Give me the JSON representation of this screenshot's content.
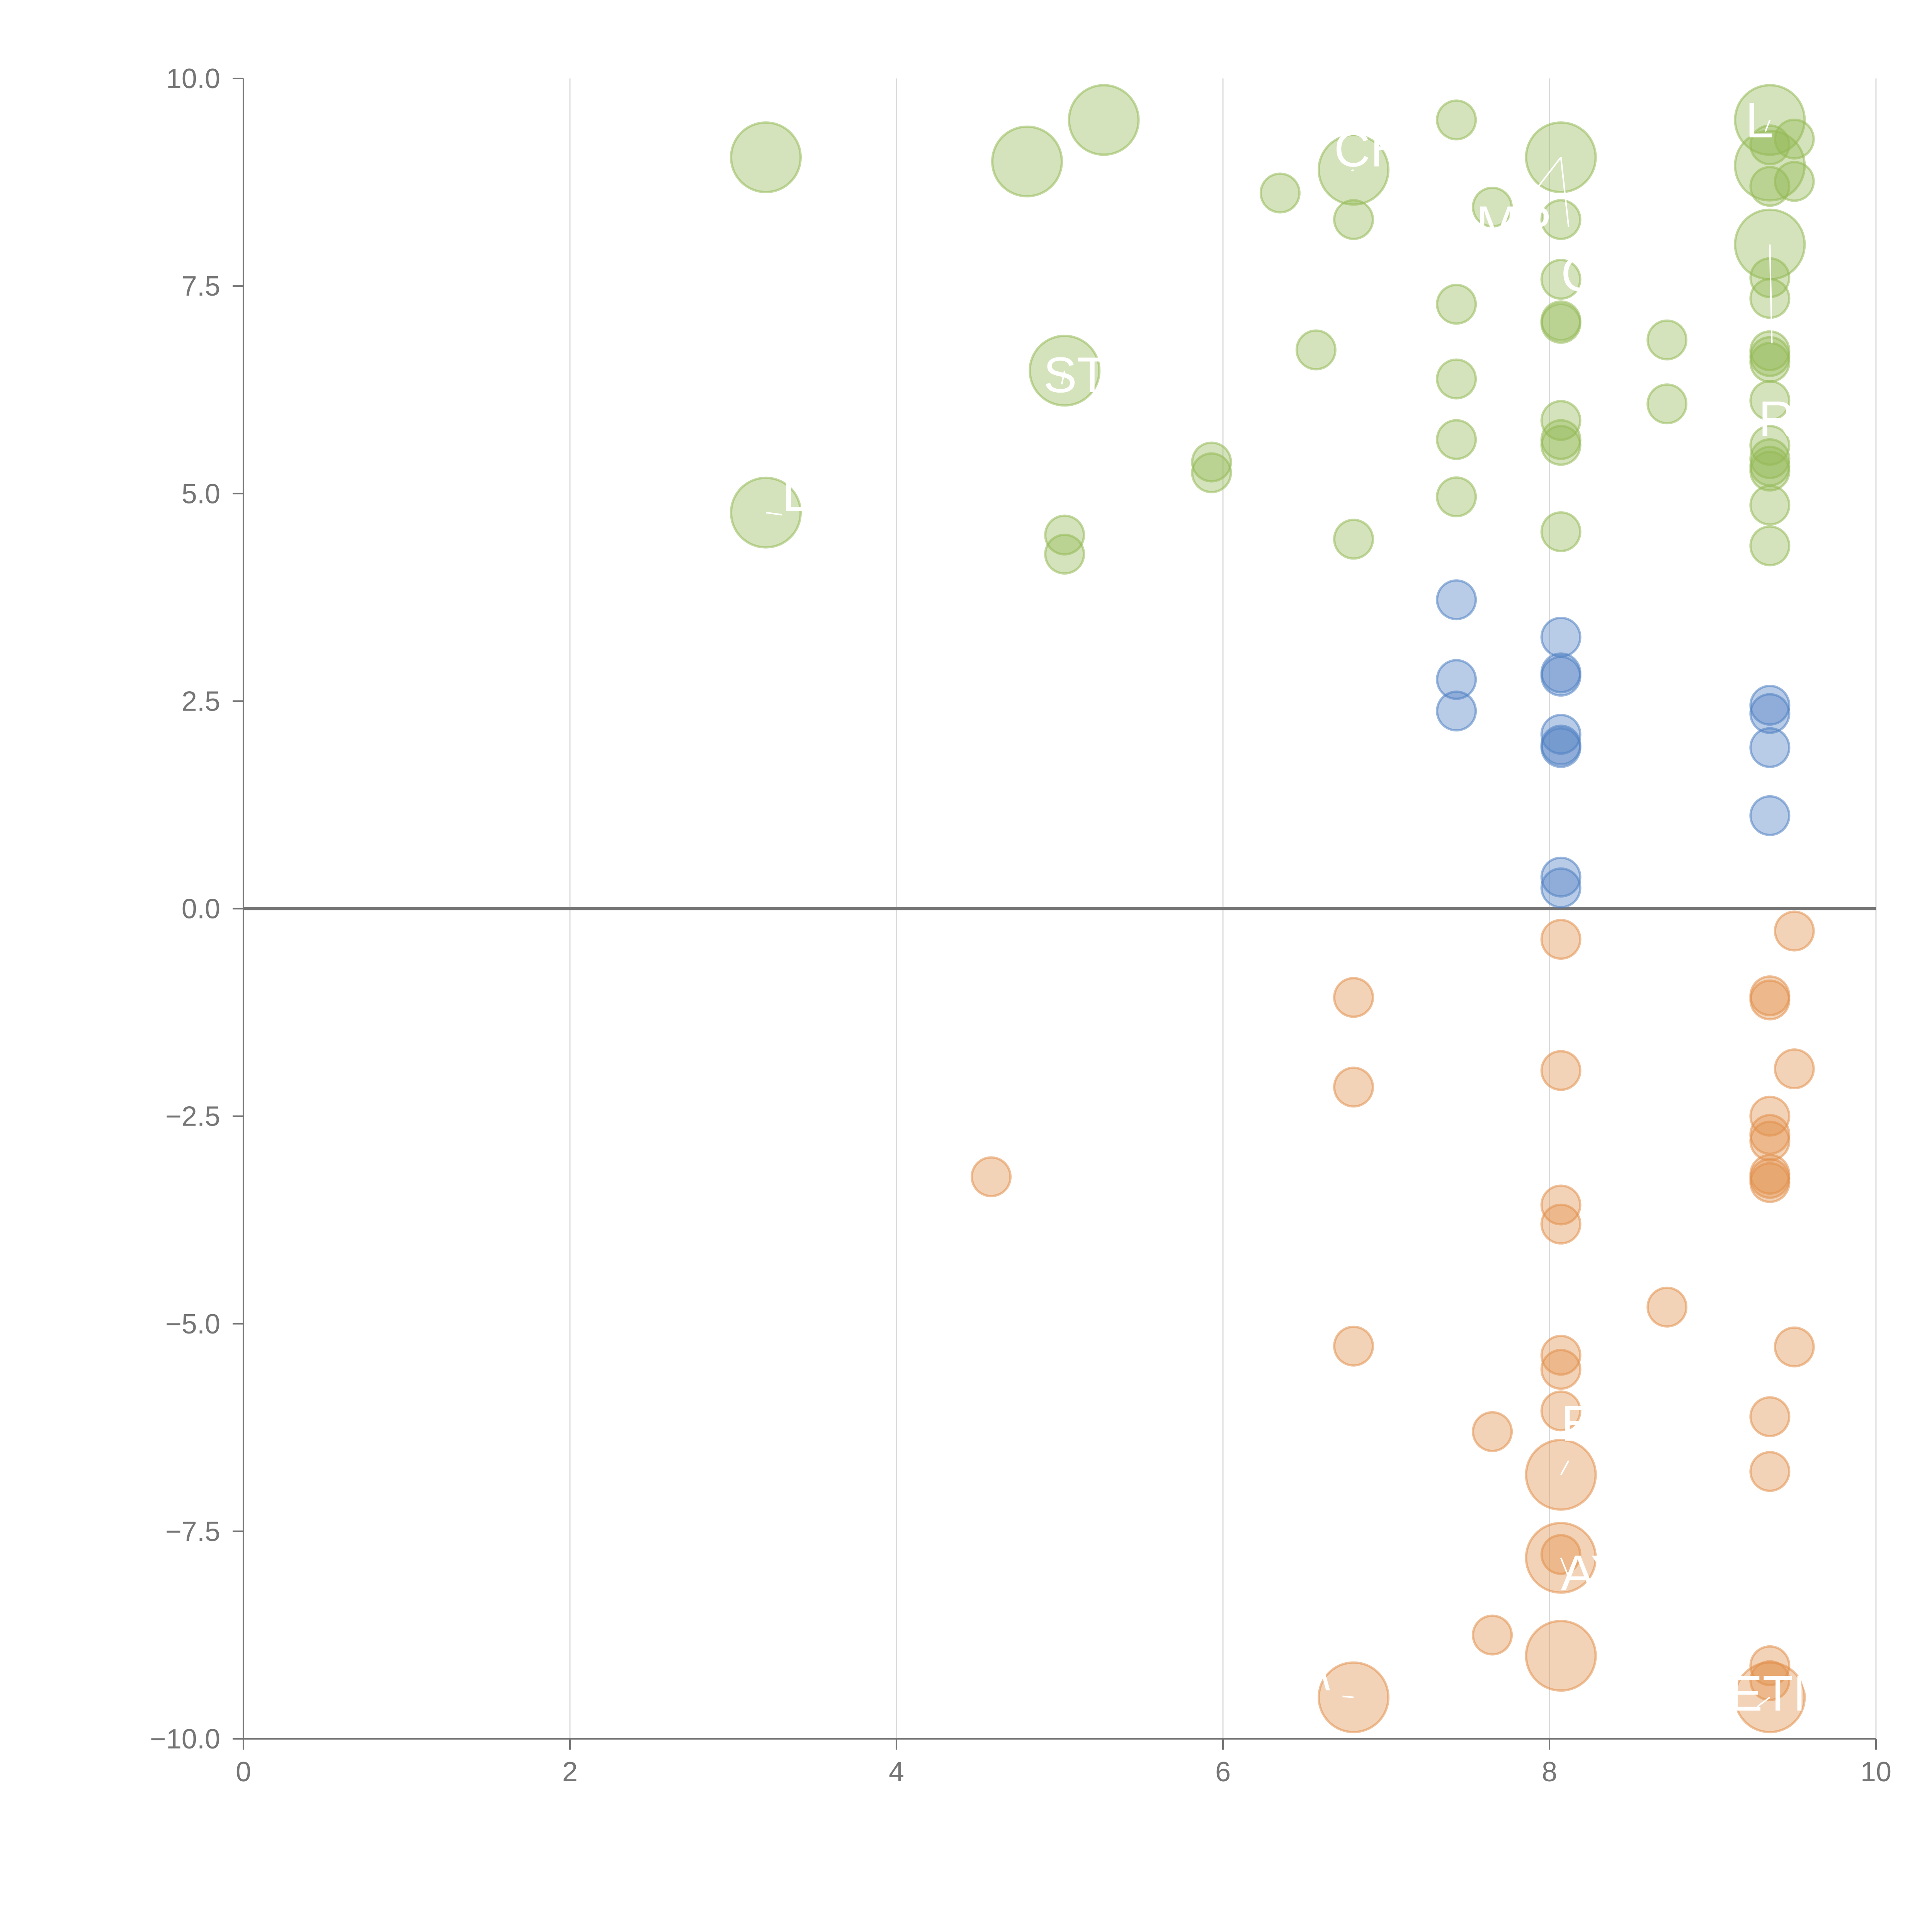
{
  "chart_data": {
    "type": "scatter",
    "title": "",
    "xlabel": "",
    "ylabel": "",
    "xlim": [
      0,
      10
    ],
    "ylim": [
      -10,
      10
    ],
    "xticks": [
      "0",
      "2",
      "4",
      "6",
      "8",
      "10"
    ],
    "yticks": [
      "10.0",
      "7.5",
      "5.0",
      "2.5",
      "0.0",
      "−2.5",
      "−5.0",
      "−7.5",
      "−10.0"
    ],
    "xtick_values": [
      0,
      2,
      4,
      6,
      8,
      10
    ],
    "ytick_values": [
      10,
      7.5,
      5,
      2.5,
      0,
      -2.5,
      -5,
      -7.5,
      -10
    ],
    "vertical_grid": true,
    "zero_line": true,
    "colors": {
      "positive_high": "#93b956",
      "positive_low": "#4f7fc2",
      "negative": "#e2904c",
      "axis": "#757575",
      "grid": "#d9d9d9",
      "label": "#ffffff"
    },
    "series": [
      {
        "name": "large-positive",
        "color": "#93b956",
        "points": [
          {
            "x": 3.2,
            "y": 9.05,
            "size": "large"
          },
          {
            "x": 4.8,
            "y": 9.0,
            "size": "large"
          },
          {
            "x": 5.27,
            "y": 9.5,
            "size": "large"
          },
          {
            "x": 6.8,
            "y": 8.9,
            "size": "large"
          },
          {
            "x": 8.07,
            "y": 9.05,
            "size": "large"
          },
          {
            "x": 9.35,
            "y": 9.5,
            "size": "large"
          },
          {
            "x": 9.35,
            "y": 8.95,
            "size": "large"
          },
          {
            "x": 9.35,
            "y": 8.0,
            "size": "large"
          },
          {
            "x": 5.03,
            "y": 6.48,
            "size": "large"
          },
          {
            "x": 3.2,
            "y": 4.77,
            "size": "large"
          },
          {
            "x": 7.43,
            "y": 9.5,
            "size": "small"
          },
          {
            "x": 9.5,
            "y": 9.27,
            "size": "small"
          },
          {
            "x": 9.35,
            "y": 9.2,
            "size": "small"
          },
          {
            "x": 6.35,
            "y": 8.62,
            "size": "small"
          },
          {
            "x": 9.5,
            "y": 8.76,
            "size": "small"
          },
          {
            "x": 9.35,
            "y": 8.7,
            "size": "small"
          },
          {
            "x": 7.65,
            "y": 8.45,
            "size": "small"
          },
          {
            "x": 6.8,
            "y": 8.3,
            "size": "small"
          },
          {
            "x": 8.07,
            "y": 8.3,
            "size": "small"
          },
          {
            "x": 8.07,
            "y": 7.58,
            "size": "small"
          },
          {
            "x": 9.35,
            "y": 7.6,
            "size": "small"
          },
          {
            "x": 9.35,
            "y": 7.35,
            "size": "small"
          },
          {
            "x": 7.43,
            "y": 7.28,
            "size": "small"
          },
          {
            "x": 8.07,
            "y": 7.08,
            "size": "small"
          },
          {
            "x": 8.07,
            "y": 7.05,
            "size": "small"
          },
          {
            "x": 8.72,
            "y": 6.85,
            "size": "small"
          },
          {
            "x": 6.57,
            "y": 6.73,
            "size": "small"
          },
          {
            "x": 9.35,
            "y": 6.72,
            "size": "small"
          },
          {
            "x": 9.35,
            "y": 6.65,
            "size": "small"
          },
          {
            "x": 9.35,
            "y": 6.58,
            "size": "small"
          },
          {
            "x": 7.43,
            "y": 6.38,
            "size": "small"
          },
          {
            "x": 9.35,
            "y": 6.12,
            "size": "small"
          },
          {
            "x": 8.72,
            "y": 6.08,
            "size": "small"
          },
          {
            "x": 8.07,
            "y": 5.88,
            "size": "small"
          },
          {
            "x": 7.43,
            "y": 5.65,
            "size": "small"
          },
          {
            "x": 8.07,
            "y": 5.65,
            "size": "small"
          },
          {
            "x": 8.07,
            "y": 5.58,
            "size": "small"
          },
          {
            "x": 9.35,
            "y": 5.58,
            "size": "small"
          },
          {
            "x": 9.35,
            "y": 5.42,
            "size": "small"
          },
          {
            "x": 5.93,
            "y": 5.38,
            "size": "small"
          },
          {
            "x": 9.35,
            "y": 5.33,
            "size": "small"
          },
          {
            "x": 5.93,
            "y": 5.25,
            "size": "small"
          },
          {
            "x": 9.35,
            "y": 5.27,
            "size": "small"
          },
          {
            "x": 7.43,
            "y": 4.96,
            "size": "small"
          },
          {
            "x": 9.35,
            "y": 4.86,
            "size": "small"
          },
          {
            "x": 8.07,
            "y": 4.54,
            "size": "small"
          },
          {
            "x": 5.03,
            "y": 4.5,
            "size": "small"
          },
          {
            "x": 6.8,
            "y": 4.45,
            "size": "small"
          },
          {
            "x": 9.35,
            "y": 4.37,
            "size": "small"
          },
          {
            "x": 5.03,
            "y": 4.27,
            "size": "small"
          }
        ]
      },
      {
        "name": "small-positive",
        "color": "#4f7fc2",
        "points": [
          {
            "x": 7.43,
            "y": 3.72,
            "size": "small"
          },
          {
            "x": 8.07,
            "y": 3.27,
            "size": "small"
          },
          {
            "x": 8.07,
            "y": 2.84,
            "size": "small"
          },
          {
            "x": 8.07,
            "y": 2.8,
            "size": "small"
          },
          {
            "x": 7.43,
            "y": 2.76,
            "size": "small"
          },
          {
            "x": 9.35,
            "y": 2.45,
            "size": "small"
          },
          {
            "x": 7.43,
            "y": 2.38,
            "size": "small"
          },
          {
            "x": 9.35,
            "y": 2.35,
            "size": "small"
          },
          {
            "x": 8.07,
            "y": 2.1,
            "size": "small"
          },
          {
            "x": 8.07,
            "y": 1.97,
            "size": "small"
          },
          {
            "x": 8.07,
            "y": 1.94,
            "size": "small"
          },
          {
            "x": 9.35,
            "y": 1.94,
            "size": "small"
          },
          {
            "x": 9.35,
            "y": 1.12,
            "size": "small"
          },
          {
            "x": 8.07,
            "y": 0.38,
            "size": "small"
          },
          {
            "x": 8.07,
            "y": 0.25,
            "size": "small"
          }
        ]
      },
      {
        "name": "negative",
        "color": "#e2904c",
        "points": [
          {
            "x": 9.5,
            "y": -0.27,
            "size": "small"
          },
          {
            "x": 8.07,
            "y": -0.37,
            "size": "small"
          },
          {
            "x": 6.8,
            "y": -1.07,
            "size": "small"
          },
          {
            "x": 9.35,
            "y": -1.05,
            "size": "small"
          },
          {
            "x": 9.35,
            "y": -1.1,
            "size": "small"
          },
          {
            "x": 8.07,
            "y": -1.95,
            "size": "small"
          },
          {
            "x": 9.5,
            "y": -1.93,
            "size": "small"
          },
          {
            "x": 6.8,
            "y": -2.15,
            "size": "small"
          },
          {
            "x": 9.35,
            "y": -2.5,
            "size": "small"
          },
          {
            "x": 9.35,
            "y": -2.72,
            "size": "small"
          },
          {
            "x": 9.35,
            "y": -2.8,
            "size": "small"
          },
          {
            "x": 4.58,
            "y": -3.23,
            "size": "small"
          },
          {
            "x": 9.35,
            "y": -3.2,
            "size": "small"
          },
          {
            "x": 9.35,
            "y": -3.25,
            "size": "small"
          },
          {
            "x": 9.35,
            "y": -3.3,
            "size": "small"
          },
          {
            "x": 8.07,
            "y": -3.57,
            "size": "small"
          },
          {
            "x": 8.07,
            "y": -3.8,
            "size": "small"
          },
          {
            "x": 8.72,
            "y": -4.8,
            "size": "small"
          },
          {
            "x": 6.8,
            "y": -5.27,
            "size": "small"
          },
          {
            "x": 9.5,
            "y": -5.28,
            "size": "small"
          },
          {
            "x": 8.07,
            "y": -5.38,
            "size": "small"
          },
          {
            "x": 8.07,
            "y": -5.55,
            "size": "small"
          },
          {
            "x": 8.07,
            "y": -6.05,
            "size": "small"
          },
          {
            "x": 9.35,
            "y": -6.12,
            "size": "small"
          },
          {
            "x": 7.65,
            "y": -6.3,
            "size": "small"
          },
          {
            "x": 9.35,
            "y": -6.78,
            "size": "small"
          },
          {
            "x": 8.07,
            "y": -7.78,
            "size": "small"
          },
          {
            "x": 7.65,
            "y": -8.75,
            "size": "small"
          },
          {
            "x": 9.35,
            "y": -9.12,
            "size": "small"
          },
          {
            "x": 9.35,
            "y": -9.3,
            "size": "small"
          },
          {
            "x": 8.07,
            "y": -6.82,
            "size": "large"
          },
          {
            "x": 8.07,
            "y": -7.82,
            "size": "large"
          },
          {
            "x": 8.07,
            "y": -9.0,
            "size": "large"
          },
          {
            "x": 6.8,
            "y": -9.5,
            "size": "large"
          },
          {
            "x": 9.35,
            "y": -9.5,
            "size": "large"
          }
        ]
      }
    ],
    "annotations": [
      {
        "text": "CH",
        "x": 6.68,
        "y": 9.15,
        "px": 6.8,
        "py": 8.9
      },
      {
        "text": "MP",
        "x": 7.55,
        "y": 8.25,
        "px": 8.07,
        "py": 9.05
      },
      {
        "text": "C",
        "x": 8.07,
        "y": 7.65,
        "px": 8.07,
        "py": 9.05
      },
      {
        "text": "L",
        "x": 9.2,
        "y": 9.5,
        "px": 9.35,
        "py": 9.5
      },
      {
        "text": "STI",
        "x": 4.9,
        "y": 6.43,
        "px": 5.03,
        "py": 6.48
      },
      {
        "text": "R",
        "x": 9.28,
        "y": 5.9,
        "px": 9.35,
        "py": 8.0
      },
      {
        "text": "L",
        "x": 3.3,
        "y": 5.0,
        "px": 3.2,
        "py": 4.77
      },
      {
        "text": "E",
        "x": 8.07,
        "y": -6.2,
        "px": 8.07,
        "py": -6.82
      },
      {
        "text": "AY",
        "x": 8.07,
        "y": -8.0,
        "px": 8.07,
        "py": -7.82
      },
      {
        "text": "ETM",
        "x": 9.1,
        "y": -9.45,
        "px": 9.35,
        "py": -9.5
      },
      {
        "text": "\\",
        "x": 6.57,
        "y": -9.2,
        "px": 6.8,
        "py": -9.5
      }
    ]
  }
}
